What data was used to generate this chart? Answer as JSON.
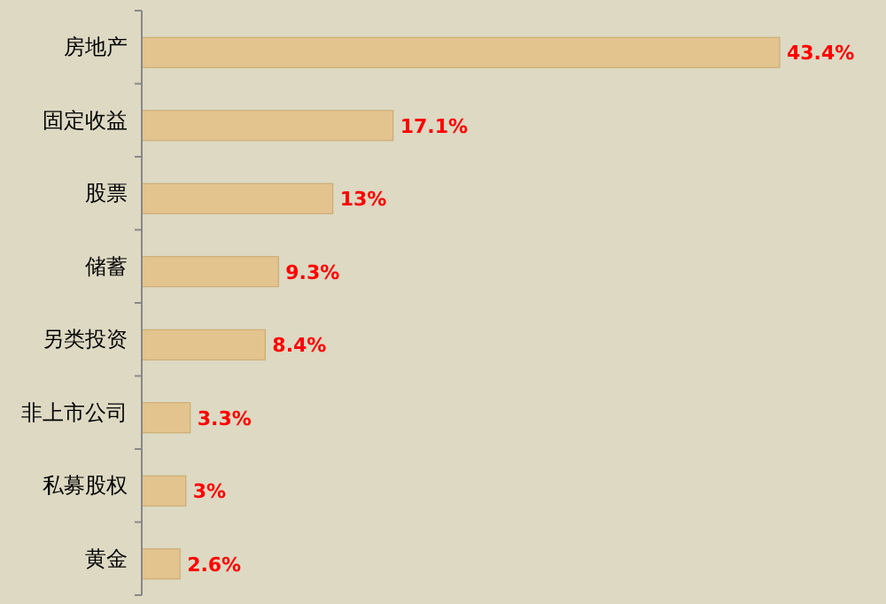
{
  "chart_data": {
    "type": "bar",
    "orientation": "horizontal",
    "categories": [
      "房地产",
      "固定收益",
      "股票",
      "储蓄",
      "另类投资",
      "非上市公司",
      "私募股权",
      "黄金"
    ],
    "values": [
      43.4,
      17.1,
      13,
      9.3,
      8.4,
      3.3,
      3,
      2.6
    ],
    "value_labels": [
      "43.4%",
      "17.1%",
      "13%",
      "9.3%",
      "8.4%",
      "3.3%",
      "3%",
      "2.6%"
    ],
    "color": "#e3c48f"
  }
}
